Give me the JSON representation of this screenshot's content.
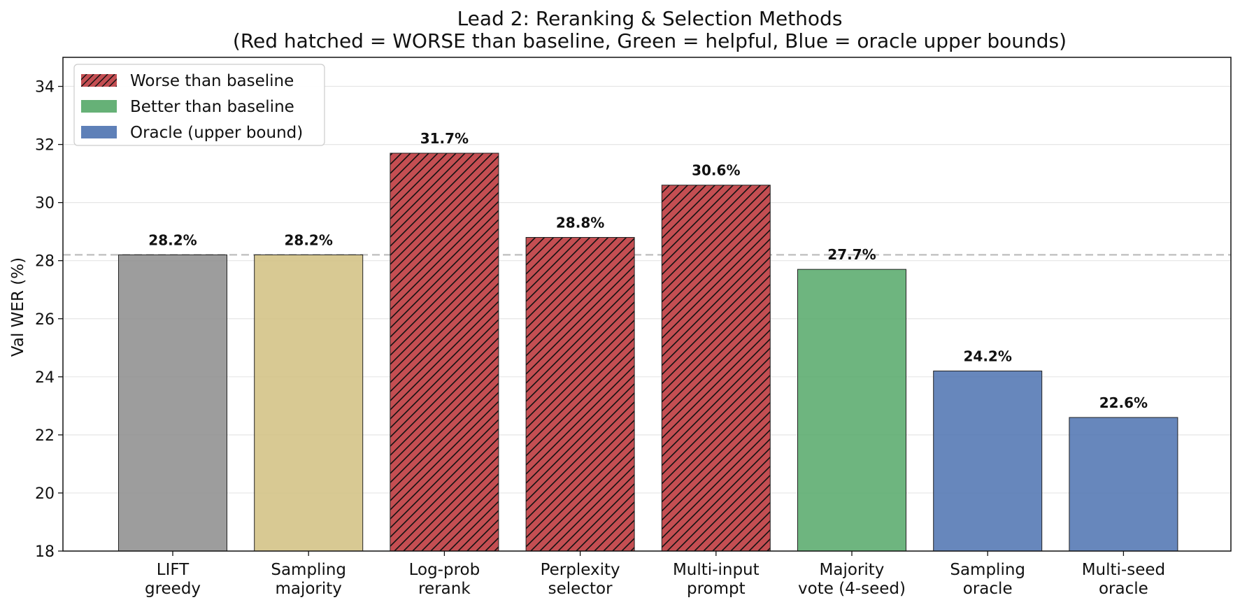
{
  "chart_data": {
    "type": "bar",
    "title": "Lead 2: Reranking & Selection Methods",
    "subtitle": "(Red hatched = WORSE than baseline, Green = helpful, Blue = oracle upper bounds)",
    "xlabel": "",
    "ylabel": "Val WER (%)",
    "ylim": [
      18,
      35
    ],
    "yticks": [
      18,
      20,
      22,
      24,
      26,
      28,
      30,
      32,
      34
    ],
    "grid": "horizontal",
    "baseline": 28.2,
    "baseline_style": "dashed gray",
    "legend_position": "top-left",
    "legend": [
      {
        "label": "Worse than baseline",
        "color": "#C44E52",
        "hatch": true
      },
      {
        "label": "Better than baseline",
        "color": "#55A868",
        "hatch": false
      },
      {
        "label": "Oracle (upper bound)",
        "color": "#4C72B0",
        "hatch": false
      }
    ],
    "categories": [
      [
        "LIFT",
        "greedy"
      ],
      [
        "Sampling",
        "majority"
      ],
      [
        "Log-prob",
        "rerank"
      ],
      [
        "Perplexity",
        "selector"
      ],
      [
        "Multi-input",
        "prompt"
      ],
      [
        "Majority",
        "vote (4-seed)"
      ],
      [
        "Sampling",
        "oracle"
      ],
      [
        "Multi-seed",
        "oracle"
      ]
    ],
    "values": [
      28.2,
      28.2,
      31.7,
      28.8,
      30.6,
      27.7,
      24.2,
      22.6
    ],
    "value_labels": [
      "28.2%",
      "28.2%",
      "31.7%",
      "28.8%",
      "30.6%",
      "27.7%",
      "24.2%",
      "22.6%"
    ],
    "bar_colors": [
      "#8C8C8C",
      "#D1C080",
      "#C44E52",
      "#C44E52",
      "#C44E52",
      "#55A868",
      "#4C72B0",
      "#4C72B0"
    ],
    "bar_hatched": [
      false,
      false,
      true,
      true,
      true,
      false,
      false,
      false
    ]
  }
}
